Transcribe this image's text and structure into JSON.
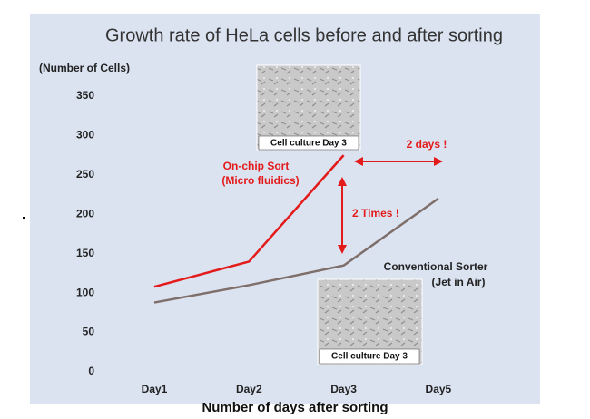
{
  "chart_data": {
    "type": "line",
    "title": "Growth rate of HeLa cells before and after sorting",
    "y_label": "(Number of Cells)",
    "x_label": "Number of days after sorting",
    "categories": [
      "Day1",
      "Day2",
      "Day3",
      "Day5"
    ],
    "series": [
      {
        "name": "On-chip Sort",
        "color": "#e31b1b",
        "values": [
          108,
          140,
          275,
          null
        ]
      },
      {
        "name": "Conventional Sorter",
        "color": "#7f6f6a",
        "values": [
          88,
          110,
          135,
          220
        ]
      }
    ],
    "ylim": [
      0,
      350
    ],
    "yticks": [
      0,
      50,
      100,
      150,
      200,
      250,
      300,
      350
    ],
    "grid": false,
    "annotations": {
      "onchip_sub": "(Micro fluidics)",
      "conventional_sub": "(Jet in Air)",
      "days_gap": "2 days !",
      "times_gap": "2 Times !",
      "image_caption_top": "Cell culture Day 3",
      "image_caption_bottom": "Cell culture Day 3"
    }
  }
}
